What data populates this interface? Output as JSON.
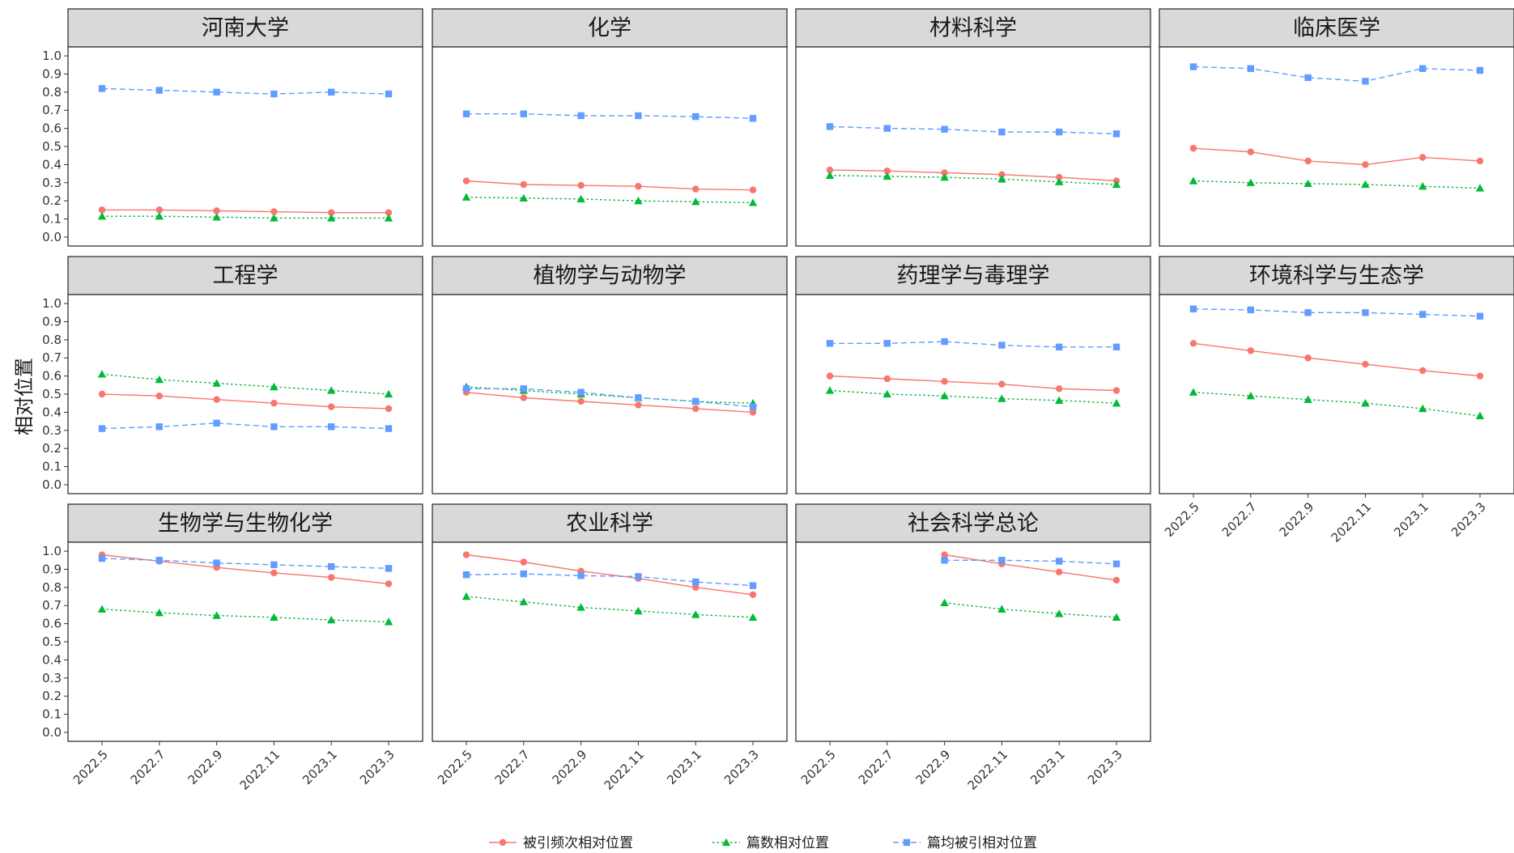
{
  "chart_data": {
    "type": "line",
    "facet_layout": {
      "rows": 3,
      "cols": 4
    },
    "ylabel": "相对位置",
    "x_ticks": [
      "2022.5",
      "2022.7",
      "2022.9",
      "2022.11",
      "2023.1",
      "2023.3"
    ],
    "y_ticks": [
      "0.0",
      "0.1",
      "0.2",
      "0.3",
      "0.4",
      "0.5",
      "0.6",
      "0.7",
      "0.8",
      "0.9",
      "1.0"
    ],
    "ylim": [
      0,
      1
    ],
    "legend_position": "bottom",
    "series_styles": [
      {
        "name": "被引频次相对位置",
        "color": "#F8766D",
        "marker": "circle",
        "dash": "solid"
      },
      {
        "name": "篇数相对位置",
        "color": "#00BA38",
        "marker": "triangle",
        "dash": "dotted"
      },
      {
        "name": "篇均被引相对位置",
        "color": "#619CFF",
        "marker": "square",
        "dash": "dashed"
      }
    ],
    "panels": [
      {
        "title": "河南大学",
        "series": [
          [
            0.15,
            0.15,
            0.145,
            0.14,
            0.135,
            0.135
          ],
          [
            0.115,
            0.115,
            0.11,
            0.105,
            0.105,
            0.105
          ],
          [
            0.82,
            0.81,
            0.8,
            0.79,
            0.8,
            0.79
          ]
        ]
      },
      {
        "title": "化学",
        "series": [
          [
            0.31,
            0.29,
            0.285,
            0.28,
            0.265,
            0.26
          ],
          [
            0.22,
            0.215,
            0.21,
            0.2,
            0.195,
            0.19
          ],
          [
            0.68,
            0.68,
            0.67,
            0.67,
            0.665,
            0.655
          ]
        ]
      },
      {
        "title": "材料科学",
        "series": [
          [
            0.37,
            0.365,
            0.355,
            0.345,
            0.33,
            0.31
          ],
          [
            0.34,
            0.335,
            0.33,
            0.32,
            0.305,
            0.29
          ],
          [
            0.61,
            0.6,
            0.595,
            0.58,
            0.58,
            0.57
          ]
        ]
      },
      {
        "title": "临床医学",
        "series": [
          [
            0.49,
            0.47,
            0.42,
            0.4,
            0.44,
            0.42
          ],
          [
            0.31,
            0.3,
            0.295,
            0.29,
            0.28,
            0.27
          ],
          [
            0.94,
            0.93,
            0.88,
            0.86,
            0.93,
            0.92
          ]
        ]
      },
      {
        "title": "工程学",
        "series": [
          [
            0.5,
            0.49,
            0.47,
            0.45,
            0.43,
            0.42
          ],
          [
            0.61,
            0.58,
            0.56,
            0.54,
            0.52,
            0.5
          ],
          [
            0.31,
            0.32,
            0.34,
            0.32,
            0.32,
            0.31
          ]
        ]
      },
      {
        "title": "植物学与动物学",
        "series": [
          [
            0.51,
            0.48,
            0.46,
            0.44,
            0.42,
            0.4
          ],
          [
            0.54,
            0.52,
            0.5,
            0.48,
            0.46,
            0.45
          ],
          [
            0.53,
            0.53,
            0.51,
            0.48,
            0.46,
            0.43
          ]
        ]
      },
      {
        "title": "药理学与毒理学",
        "series": [
          [
            0.6,
            0.585,
            0.57,
            0.555,
            0.53,
            0.52
          ],
          [
            0.52,
            0.5,
            0.49,
            0.475,
            0.465,
            0.45
          ],
          [
            0.78,
            0.78,
            0.79,
            0.77,
            0.76,
            0.76
          ]
        ]
      },
      {
        "title": "环境科学与生态学",
        "series": [
          [
            0.78,
            0.74,
            0.7,
            0.665,
            0.63,
            0.6
          ],
          [
            0.51,
            0.49,
            0.47,
            0.45,
            0.42,
            0.38
          ],
          [
            0.97,
            0.965,
            0.95,
            0.95,
            0.94,
            0.93
          ]
        ]
      },
      {
        "title": "生物学与生物化学",
        "series": [
          [
            0.98,
            0.945,
            0.91,
            0.88,
            0.855,
            0.82
          ],
          [
            0.68,
            0.66,
            0.645,
            0.635,
            0.62,
            0.61
          ],
          [
            0.96,
            0.95,
            0.935,
            0.925,
            0.915,
            0.905
          ]
        ]
      },
      {
        "title": "农业科学",
        "series": [
          [
            0.98,
            0.94,
            0.89,
            0.85,
            0.8,
            0.76
          ],
          [
            0.75,
            0.72,
            0.69,
            0.67,
            0.65,
            0.635
          ],
          [
            0.87,
            0.875,
            0.865,
            0.86,
            0.83,
            0.81
          ]
        ]
      },
      {
        "title": "社会科学总论",
        "series": [
          [
            null,
            null,
            0.98,
            0.93,
            0.885,
            0.84
          ],
          [
            null,
            null,
            0.715,
            0.68,
            0.655,
            0.635
          ],
          [
            null,
            null,
            0.95,
            0.95,
            0.945,
            0.93
          ]
        ]
      }
    ]
  }
}
